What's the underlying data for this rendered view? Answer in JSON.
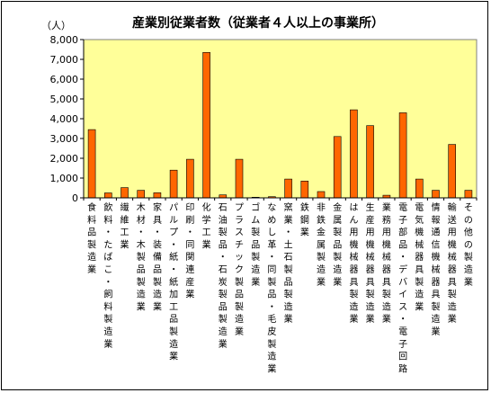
{
  "chart_data": {
    "type": "bar",
    "title": "産業別従業者数（従業者４人以上の事業所）",
    "ylabel": "（人）",
    "xlabel": "",
    "ylim": [
      0,
      8000
    ],
    "yticks": [
      "0",
      "1,000",
      "2,000",
      "3,000",
      "4,000",
      "5,000",
      "6,000",
      "7,000",
      "8,000"
    ],
    "grid": false,
    "plot_background": "#ffff99",
    "bar_color": "#ff6600",
    "categories": [
      "食料品製造業",
      "飲料・たばこ・飼料製造業",
      "繊維工業",
      "木材・木製品製造業",
      "家具・装備品製造業",
      "パルプ・紙・紙加工品製造業",
      "印刷・同関連産業",
      "化学工業",
      "石油製品・石炭製品製造業",
      "プラスチック製品製造業",
      "ゴム製品製造業",
      "なめし革・同製品・毛皮製造業",
      "窯業・土石製品製造業",
      "鉄鋼業",
      "非鉄金属製造業",
      "金属製品製造業",
      "はん用機械器具製造業",
      "生産用機械器具製造業",
      "業務用機械器具製造業",
      "電子部品・デバイス・電子回路",
      "電気機械器具製造業",
      "情報通信機械器具製造業",
      "輸送用機械器具製造業",
      "その他の製造業"
    ],
    "values": [
      3450,
      250,
      520,
      380,
      260,
      1400,
      1950,
      7350,
      150,
      1950,
      30,
      60,
      950,
      850,
      320,
      3100,
      4450,
      3650,
      130,
      4300,
      950,
      380,
      2700,
      380
    ]
  }
}
